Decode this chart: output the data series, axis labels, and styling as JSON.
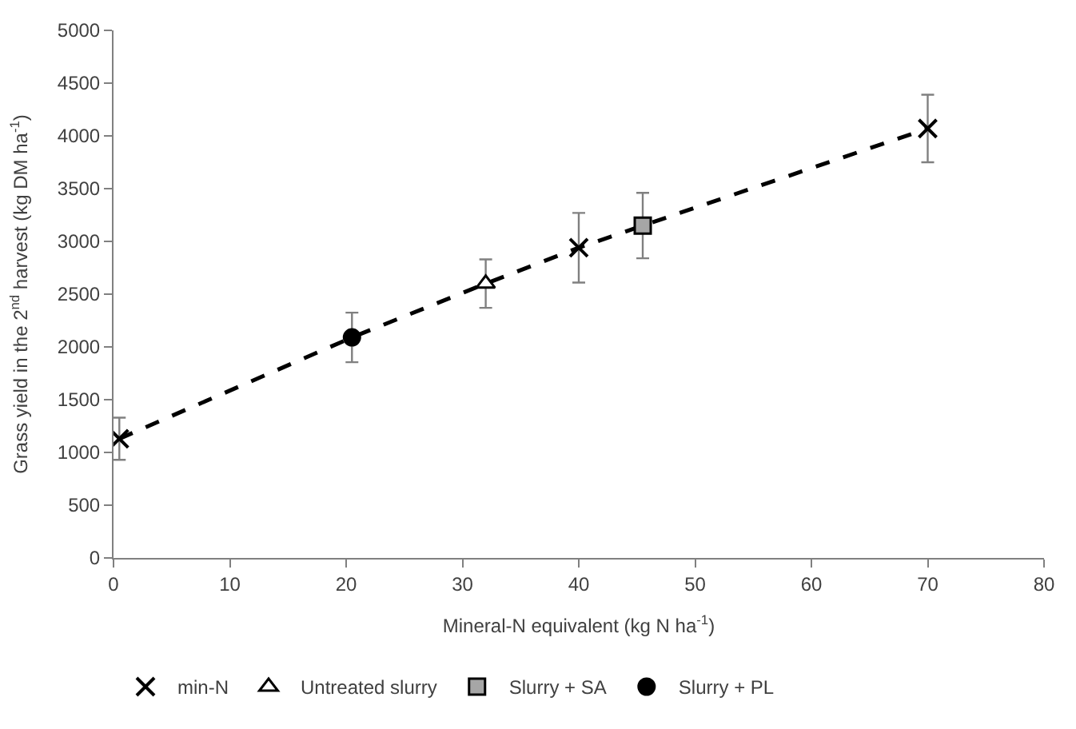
{
  "chart_data": {
    "type": "scatter",
    "xlabel": "Mineral-N equivalent (kg N ha$^{-1}$)",
    "ylabel": "Grass yield in the 2$^{nd}$ harvest (kg DM ha$^{-1}$)",
    "xlim": [
      0,
      80
    ],
    "xticks": [
      0,
      10,
      20,
      30,
      40,
      50,
      60,
      70,
      80
    ],
    "ylim": [
      0,
      5000
    ],
    "yticks": [
      0,
      500,
      1000,
      1500,
      2000,
      2500,
      3000,
      3500,
      4000,
      4500,
      5000
    ],
    "legend": "bottom",
    "series": [
      {
        "type": "line",
        "color": "#000000",
        "x": [
          0.5,
          20.5,
          32,
          40,
          45.5,
          70
        ],
        "values": [
          1130,
          2090,
          2600,
          2940,
          3150,
          4070
        ],
        "marker": "none",
        "line_style": "dashed"
      },
      {
        "name": "min-N",
        "color": "#000000",
        "marker": "cross",
        "x": [
          0.5,
          40,
          70
        ],
        "values": [
          1130,
          2940,
          4070
        ],
        "errors": [
          200,
          330,
          320
        ]
      },
      {
        "name": "Untreated slurry",
        "color": "#ffffff",
        "marker": "triangle",
        "x": [
          32
        ],
        "values": [
          2600
        ],
        "errors": [
          230
        ]
      },
      {
        "name": "Slurry + SA",
        "color": "#a6a6a6",
        "marker": "square",
        "x": [
          45.5
        ],
        "values": [
          3150
        ],
        "errors": [
          310
        ]
      },
      {
        "name": "Slurry + PL",
        "color": "#000000",
        "marker": "circle",
        "x": [
          20.5
        ],
        "values": [
          2090
        ],
        "errors": [
          235
        ]
      }
    ]
  }
}
